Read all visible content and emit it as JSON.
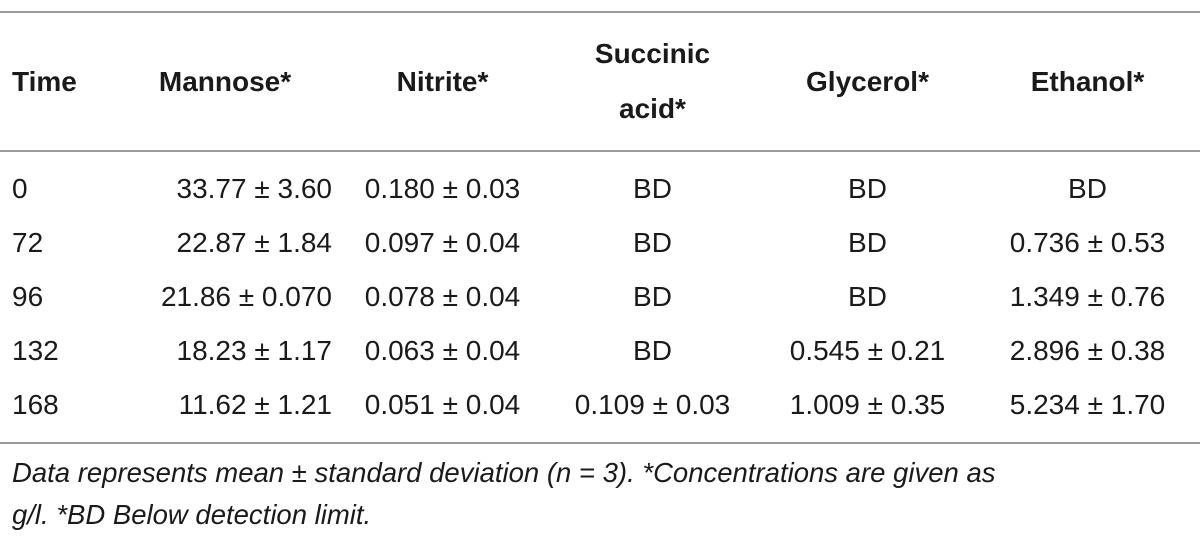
{
  "table": {
    "headers": {
      "time": "Time",
      "mannose": "Mannose*",
      "nitrite": "Nitrite*",
      "succinic_line1": "Succinic",
      "succinic_line2": "acid*",
      "glycerol": "Glycerol*",
      "ethanol": "Ethanol*"
    },
    "rows": [
      {
        "time": "0",
        "mannose": "33.77 ± 3.60",
        "nitrite": "0.180 ± 0.03",
        "succinic": "BD",
        "glycerol": "BD",
        "ethanol": "BD"
      },
      {
        "time": "72",
        "mannose": "22.87 ± 1.84",
        "nitrite": "0.097 ± 0.04",
        "succinic": "BD",
        "glycerol": "BD",
        "ethanol": "0.736 ± 0.53"
      },
      {
        "time": "96",
        "mannose": "21.86 ± 0.070",
        "nitrite": "0.078 ± 0.04",
        "succinic": "BD",
        "glycerol": "BD",
        "ethanol": "1.349 ± 0.76"
      },
      {
        "time": "132",
        "mannose": "18.23 ± 1.17",
        "nitrite": "0.063 ± 0.04",
        "succinic": "BD",
        "glycerol": "0.545 ± 0.21",
        "ethanol": "2.896 ± 0.38"
      },
      {
        "time": "168",
        "mannose": "11.62 ± 1.21",
        "nitrite": "0.051 ± 0.04",
        "succinic": "0.109 ± 0.03",
        "glycerol": "1.009 ± 0.35",
        "ethanol": "5.234 ± 1.70"
      }
    ]
  },
  "footnote": {
    "line1": "Data represents mean ± standard deviation (n = 3). *Concentrations are given as",
    "line2": "g/l. *BD Below detection limit."
  }
}
